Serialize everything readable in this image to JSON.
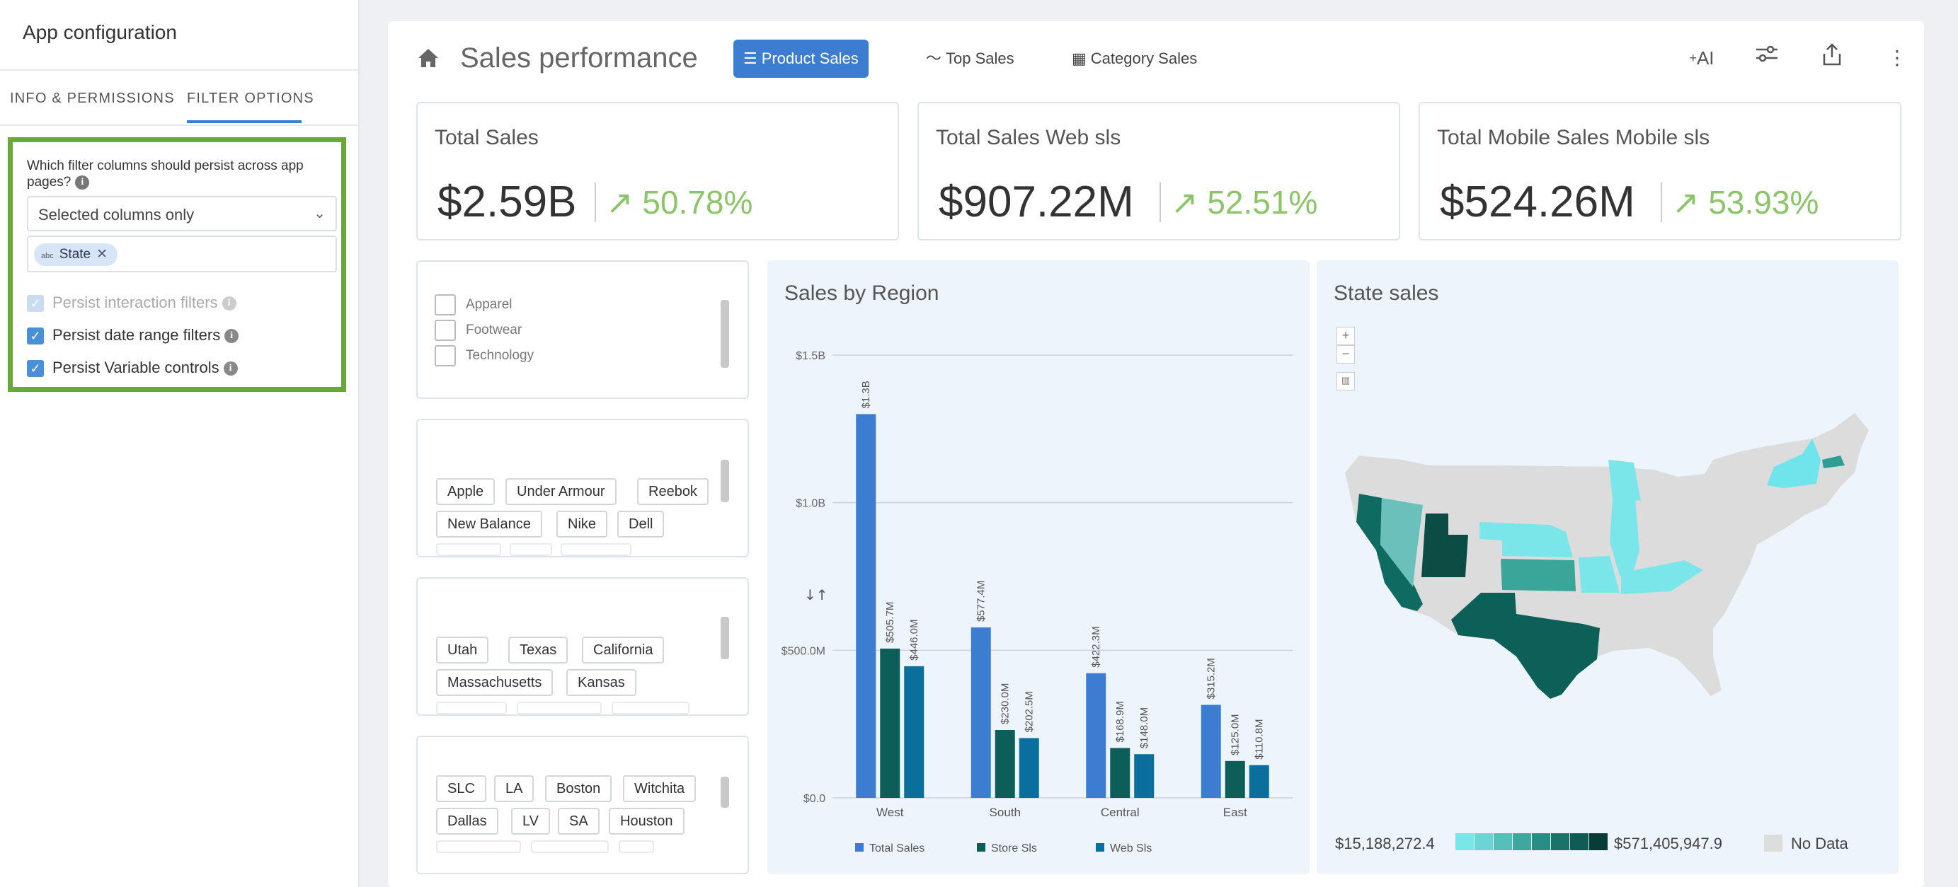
{
  "app_config": {
    "title": "App configuration",
    "tabs": [
      "INFO & PERMISSIONS",
      "FILTER OPTIONS"
    ],
    "question": "Which filter columns should persist across app pages?",
    "select_value": "Selected columns only",
    "chip_type": "abc",
    "chip_label": "State",
    "checkboxes": [
      {
        "label": "Persist interaction filters",
        "checked": true,
        "disabled": true
      },
      {
        "label": "Persist date range filters",
        "checked": true,
        "disabled": false
      },
      {
        "label": "Persist Variable controls",
        "checked": true,
        "disabled": false
      }
    ]
  },
  "header": {
    "title": "Sales performance",
    "views": [
      "Product Sales",
      "Top Sales",
      "Category Sales"
    ],
    "ai_label": "AI"
  },
  "kpis": [
    {
      "label": "Total Sales",
      "value": "$2.59B",
      "trend": "50.78%"
    },
    {
      "label": "Total Sales Web sls",
      "value": "$907.22M",
      "trend": "52.51%"
    },
    {
      "label": "Total Mobile Sales Mobile sls",
      "value": "$524.26M",
      "trend": "53.93%"
    }
  ],
  "filters": {
    "categories": [
      "Apparel",
      "Footwear",
      "Technology"
    ],
    "brands": [
      "Apple",
      "Under Armour",
      "Reebok",
      "New Balance",
      "Nike",
      "Dell"
    ],
    "states": [
      "Utah",
      "Texas",
      "California",
      "Massachusetts",
      "Kansas"
    ],
    "cities": [
      "SLC",
      "LA",
      "Boston",
      "Witchita",
      "Dallas",
      "LV",
      "SA",
      "Houston"
    ]
  },
  "colors": {
    "total_sales": "#3c7dd1",
    "store_sls": "#0d5e58",
    "web_sls": "#0a6f9c",
    "accent": "#3c7dd1",
    "trend_up": "#8cc46a",
    "map_light": "#7be6ea",
    "map_mid": "#2f9e94",
    "map_dark": "#0b4d45",
    "no_data": "#dddddd"
  },
  "chart_data": {
    "type": "bar",
    "title": "Sales by Region",
    "categories": [
      "West",
      "South",
      "Central",
      "East"
    ],
    "series": [
      {
        "name": "Total Sales",
        "values": [
          1300000000,
          577400000,
          422300000,
          315200000
        ],
        "labels": [
          "$1.3B",
          "$577.4M",
          "$422.3M",
          "$315.2M"
        ]
      },
      {
        "name": "Store Sls",
        "values": [
          505700000,
          230000000,
          168900000,
          125000000
        ],
        "labels": [
          "$505.7M",
          "$230.0M",
          "$168.9M",
          "$125.0M"
        ]
      },
      {
        "name": "Web Sls",
        "values": [
          446000000,
          202500000,
          148000000,
          110800000
        ],
        "labels": [
          "$446.0M",
          "$202.5M",
          "$148.0M",
          "$110.8M"
        ]
      }
    ],
    "yticks": [
      0,
      500000000,
      1000000000,
      1500000000
    ],
    "ytick_labels": [
      "$0.0",
      "$500.0M",
      "$1.0B",
      "$1.5B"
    ],
    "ylim": [
      0,
      1500000000
    ],
    "legend_placement": "bottom",
    "grid": true,
    "sort_icon": "↓↑"
  },
  "map": {
    "title": "State sales",
    "legend_min": "$15,188,272.4",
    "legend_max": "$571,405,947.9",
    "no_data_label": "No Data",
    "zoom_in": "+",
    "zoom_out": "−"
  }
}
